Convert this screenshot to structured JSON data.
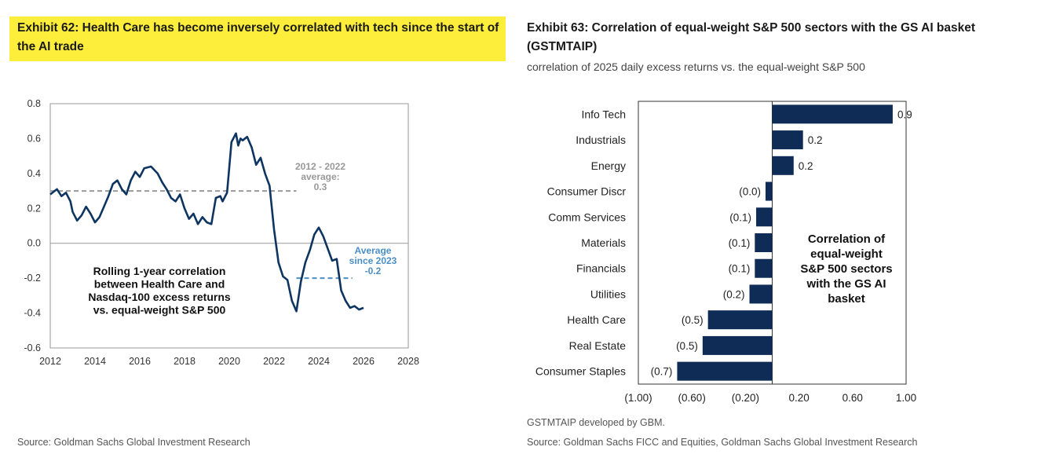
{
  "exhibit62": {
    "title": "Exhibit 62: Health Care has become inversely correlated with tech since the start of the AI trade",
    "source": "Source: Goldman Sachs Global Investment Research"
  },
  "exhibit63": {
    "title": "Exhibit 63: Correlation of equal-weight S&P 500 sectors with the GS AI basket (GSTMTAIP)",
    "subtitle": "correlation of 2025 daily excess returns vs. the equal-weight S&P 500",
    "footnote": "GSTMTAIP developed by GBM.",
    "source": "Source: Goldman Sachs FICC and Equities, Goldman Sachs Global Investment Research"
  },
  "chart_data": [
    {
      "type": "line",
      "title": "Rolling 1-year correlation between Health Care and Nasdaq-100 excess returns vs. equal-weight S&P 500",
      "annotation_lines": [
        "Rolling 1-year correlation",
        "between Health Care and",
        "Nasdaq-100 excess returns",
        "vs. equal-weight S&P 500"
      ],
      "color": "#0e3561",
      "x": [
        2012.0,
        2012.3,
        2012.5,
        2012.7,
        2012.9,
        2013.0,
        2013.2,
        2013.4,
        2013.6,
        2013.8,
        2014.0,
        2014.2,
        2014.4,
        2014.6,
        2014.8,
        2015.0,
        2015.2,
        2015.4,
        2015.6,
        2015.8,
        2016.0,
        2016.2,
        2016.5,
        2016.8,
        2017.0,
        2017.2,
        2017.4,
        2017.6,
        2017.8,
        2018.0,
        2018.2,
        2018.4,
        2018.6,
        2018.8,
        2019.0,
        2019.2,
        2019.4,
        2019.6,
        2019.7,
        2019.9,
        2020.1,
        2020.3,
        2020.4,
        2020.5,
        2020.6,
        2020.8,
        2021.0,
        2021.2,
        2021.4,
        2021.6,
        2021.8,
        2022.0,
        2022.2,
        2022.4,
        2022.6,
        2022.8,
        2023.0,
        2023.2,
        2023.4,
        2023.6,
        2023.8,
        2024.0,
        2024.2,
        2024.4,
        2024.6,
        2024.8,
        2025.0,
        2025.2,
        2025.4,
        2025.6,
        2025.8,
        2026.0
      ],
      "y": [
        0.28,
        0.31,
        0.27,
        0.29,
        0.24,
        0.18,
        0.13,
        0.16,
        0.21,
        0.17,
        0.12,
        0.15,
        0.21,
        0.27,
        0.34,
        0.36,
        0.31,
        0.28,
        0.36,
        0.41,
        0.38,
        0.43,
        0.44,
        0.4,
        0.35,
        0.31,
        0.26,
        0.24,
        0.28,
        0.2,
        0.14,
        0.17,
        0.11,
        0.15,
        0.12,
        0.11,
        0.26,
        0.27,
        0.24,
        0.29,
        0.58,
        0.63,
        0.56,
        0.6,
        0.59,
        0.61,
        0.55,
        0.45,
        0.49,
        0.4,
        0.33,
        0.08,
        -0.11,
        -0.19,
        -0.21,
        -0.33,
        -0.39,
        -0.22,
        -0.11,
        -0.04,
        0.05,
        0.09,
        0.04,
        -0.03,
        -0.1,
        -0.09,
        -0.27,
        -0.33,
        -0.37,
        -0.36,
        -0.38,
        -0.37
      ],
      "ylim": [
        -0.6,
        0.8
      ],
      "yticks": [
        "0.8",
        "0.6",
        "0.4",
        "0.2",
        "0.0",
        "-0.2",
        "-0.4",
        "-0.6"
      ],
      "xlim": [
        2012,
        2028
      ],
      "xticks": [
        "2012",
        "2014",
        "2016",
        "2018",
        "2020",
        "2022",
        "2024",
        "2026",
        "2028"
      ],
      "reference_lines": [
        {
          "label_lines": [
            "2012 - 2022",
            "average:",
            "0.3"
          ],
          "value": 0.3,
          "x_range": [
            2012,
            2023
          ],
          "color": "#999999"
        },
        {
          "label_lines": [
            "Average",
            "since 2023",
            "-0.2"
          ],
          "value": -0.2,
          "x_range": [
            2023,
            2025.5
          ],
          "color": "#4b8fc8"
        }
      ]
    },
    {
      "type": "bar",
      "orientation": "horizontal",
      "title": "Correlation of equal-weight S&P 500 sectors with the GS AI basket",
      "annotation_lines": [
        "Correlation of",
        "equal-weight",
        "S&P 500 sectors",
        "with the GS AI",
        "basket"
      ],
      "color": "#0e2c55",
      "categories": [
        "Info Tech",
        "Industrials",
        "Energy",
        "Consumer Discr",
        "Comm Services",
        "Materials",
        "Financials",
        "Utilities",
        "Health Care",
        "Real Estate",
        "Consumer Staples"
      ],
      "values": [
        0.9,
        0.23,
        0.16,
        -0.05,
        -0.12,
        -0.13,
        -0.13,
        -0.17,
        -0.48,
        -0.52,
        -0.71
      ],
      "value_labels": [
        "0.9",
        "0.2",
        "0.2",
        "(0.0)",
        "(0.1)",
        "(0.1)",
        "(0.1)",
        "(0.2)",
        "(0.5)",
        "(0.5)",
        "(0.7)"
      ],
      "xlim": [
        -1.0,
        1.0
      ],
      "xticks": [
        "(1.00)",
        "(0.60)",
        "(0.20)",
        "0.20",
        "0.60",
        "1.00"
      ],
      "xtick_values": [
        -1.0,
        -0.6,
        -0.2,
        0.2,
        0.6,
        1.0
      ]
    }
  ]
}
